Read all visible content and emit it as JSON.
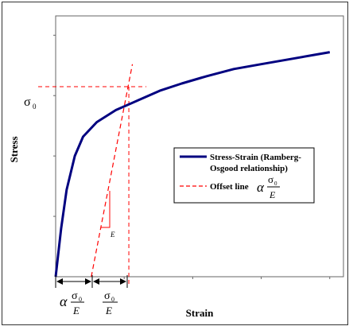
{
  "chart_data": {
    "type": "line",
    "xlabel": "Strain",
    "ylabel": "Stress",
    "yield_label": "σ",
    "yield_subscript": "0",
    "modulus_label": "E",
    "grid": false,
    "legend_position": "right-middle",
    "legend": {
      "entry1_line1": "Stress-Strain (Ramberg-",
      "entry1_line2": "Osgood relationship)",
      "entry2": "Offset line",
      "alpha": "α",
      "frac_num": "σ",
      "frac_num_sub": "0",
      "frac_den": "E"
    },
    "annotations": {
      "left_alpha": "α",
      "left_num": "σ",
      "left_num_sub": "0",
      "left_den": "E",
      "right_num": "σ",
      "right_num_sub": "0",
      "right_den": "E"
    },
    "series": [
      {
        "name": "Stress-Strain (Ramberg-Osgood relationship)",
        "color": "#000080",
        "style": "solid",
        "x": [
          0,
          0.02,
          0.04,
          0.07,
          0.1,
          0.15,
          0.22,
          0.3,
          0.38,
          0.46,
          0.55,
          0.65,
          0.75,
          0.85,
          0.95,
          1.0
        ],
        "y": [
          0,
          0.2,
          0.36,
          0.5,
          0.58,
          0.64,
          0.69,
          0.73,
          0.77,
          0.8,
          0.83,
          0.86,
          0.88,
          0.9,
          0.92,
          0.93
        ]
      },
      {
        "name": "Offset line",
        "color": "#ff0000",
        "style": "dashed",
        "x": [
          0.13,
          0.28
        ],
        "y": [
          0,
          0.88
        ]
      }
    ],
    "yield_point": {
      "x": 0.267,
      "y": 0.787
    },
    "offset_start_x": 0.134,
    "xlim": [
      0,
      1.05
    ],
    "ylim": [
      0,
      1.08
    ]
  }
}
